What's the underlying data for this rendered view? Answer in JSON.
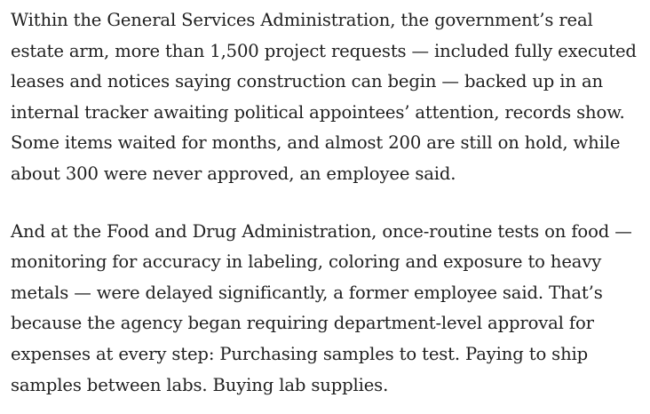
{
  "article": {
    "paragraphs": [
      "Within the General Services Administration, the government’s real\nestate arm, more than 1,500 project requests — included fully executed\nleases and notices saying construction can begin — backed up in an\ninternal tracker awaiting political appointees’ attention, records show.\nSome items waited for months, and almost 200 are still on hold, while\nabout 300 were never approved, an employee said.",
      "And at the Food and Drug Administration, once-routine tests on food —\nmonitoring for accuracy in labeling, coloring and exposure to heavy\nmetals — were delayed significantly, a former employee said. That’s\nbecause the agency began requiring department-level approval for\nexpenses at every step: Purchasing samples to test. Paying to ship\nsamples between labs. Buying lab supplies."
    ]
  }
}
